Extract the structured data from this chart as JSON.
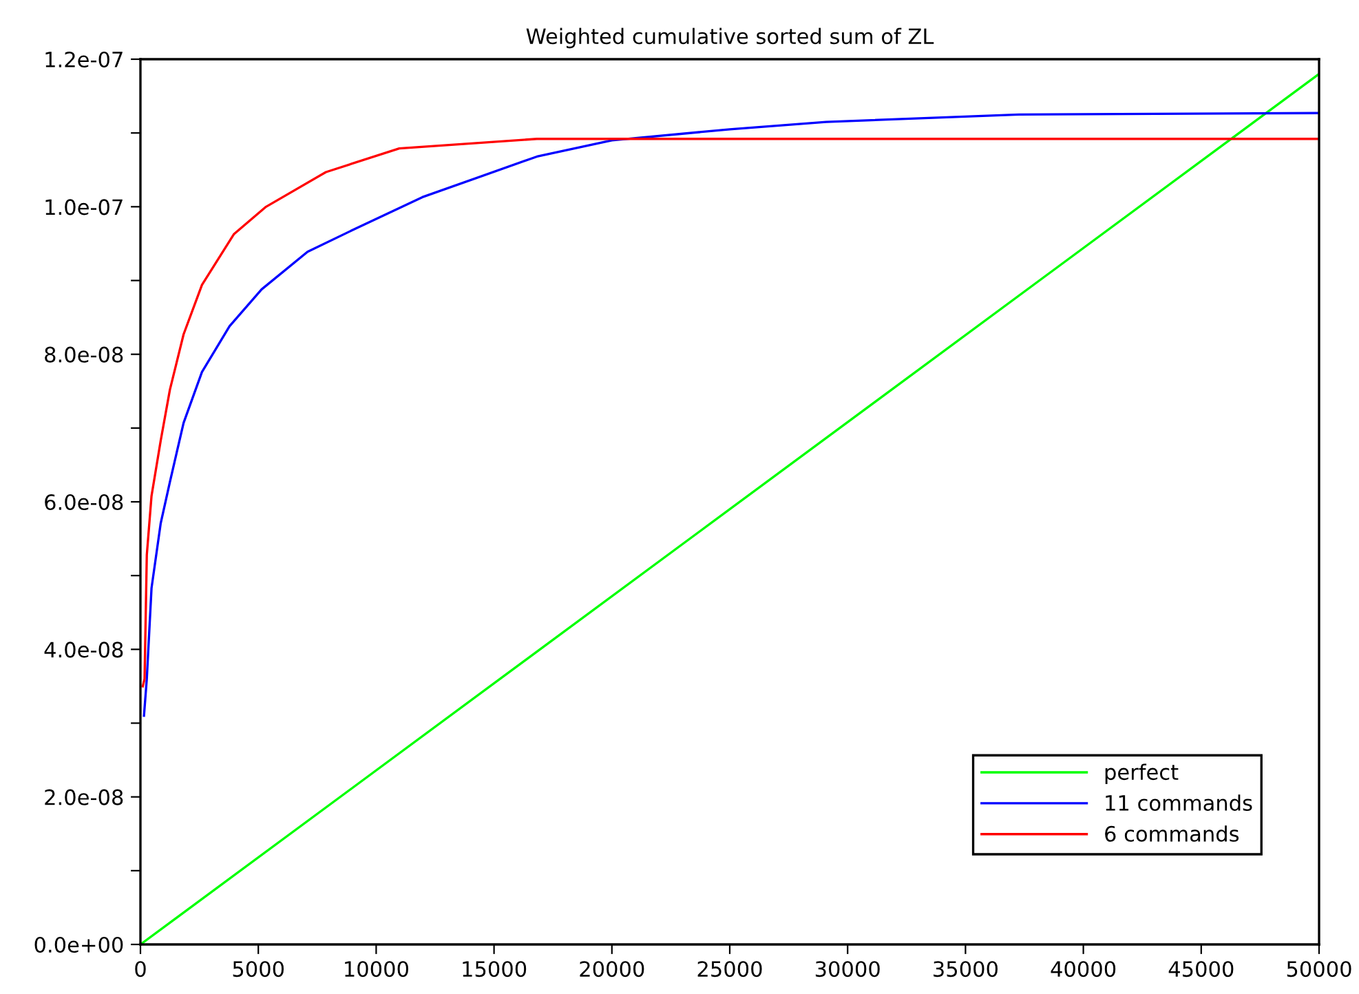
{
  "chart_data": {
    "type": "line",
    "title": "Weighted cumulative sorted sum of ZL",
    "xlim": [
      0,
      50000
    ],
    "xticks": [
      0,
      5000,
      10000,
      15000,
      20000,
      25000,
      30000,
      35000,
      40000,
      45000,
      50000
    ],
    "ylim": [
      0,
      1.2e-07
    ],
    "yticks": [
      {
        "value": 0,
        "label": "0.0e+00"
      },
      {
        "value": 1e-08,
        "label": null
      },
      {
        "value": 2e-08,
        "label": "2.0e-08"
      },
      {
        "value": 3e-08,
        "label": null
      },
      {
        "value": 4e-08,
        "label": "4.0e-08"
      },
      {
        "value": 5e-08,
        "label": null
      },
      {
        "value": 6e-08,
        "label": "6.0e-08"
      },
      {
        "value": 7e-08,
        "label": null
      },
      {
        "value": 8e-08,
        "label": "8.0e-08"
      },
      {
        "value": 9e-08,
        "label": null
      },
      {
        "value": 1e-07,
        "label": "1.0e-07"
      },
      {
        "value": 1.1e-07,
        "label": null
      },
      {
        "value": 1.2e-07,
        "label": "1.2e-07"
      }
    ],
    "legend": "bottom right",
    "grid": false,
    "series": [
      {
        "name": "perfect",
        "color": "#00ff00",
        "x": [
          0,
          50000
        ],
        "values": [
          0,
          1.18e-07
        ]
      },
      {
        "name": "11 commands",
        "color": "#0000ff",
        "x": [
          150,
          270,
          470,
          860,
          1250,
          1830,
          2610,
          3780,
          5140,
          7090,
          9040,
          11960,
          16820,
          20000,
          25000,
          29090,
          37270,
          50000
        ],
        "values": [
          3.1e-08,
          3.6e-08,
          4.83e-08,
          5.71e-08,
          6.27e-08,
          7.07e-08,
          7.76e-08,
          8.38e-08,
          8.88e-08,
          9.39e-08,
          9.69e-08,
          1.013e-07,
          1.068e-07,
          1.09e-07,
          1.105e-07,
          1.115e-07,
          1.125e-07,
          1.127e-07
        ]
      },
      {
        "name": "6 commands",
        "color": "#ff0000",
        "x": [
          100,
          175,
          270,
          470,
          860,
          1250,
          1830,
          2610,
          3970,
          5330,
          7870,
          10980,
          16820,
          50000
        ],
        "values": [
          3.5e-08,
          3.6e-08,
          5.28e-08,
          6.08e-08,
          6.83e-08,
          7.52e-08,
          8.27e-08,
          8.94e-08,
          9.63e-08,
          1e-07,
          1.047e-07,
          1.079e-07,
          1.092e-07,
          1.092e-07
        ]
      }
    ]
  }
}
